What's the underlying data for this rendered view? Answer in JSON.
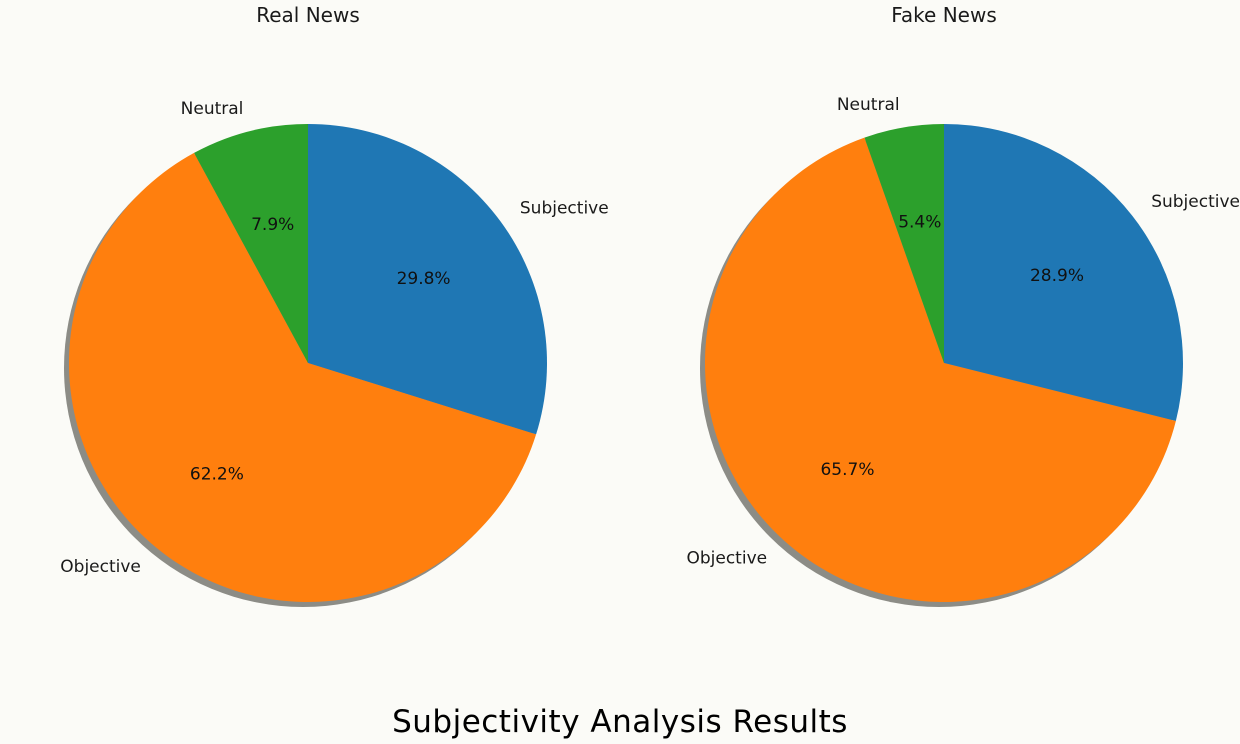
{
  "caption": "Subjectivity Analysis Results",
  "chart_data": [
    {
      "type": "pie",
      "title": "Real News",
      "start_angle_deg": 90,
      "direction": "clockwise",
      "shadow": true,
      "slices": [
        {
          "key": "subjective",
          "label": "Subjective",
          "value": 29.8,
          "pct_label": "29.8%",
          "color": "#1f77b4"
        },
        {
          "key": "objective",
          "label": "Objective",
          "value": 62.2,
          "pct_label": "62.2%",
          "color": "#ff7f0e"
        },
        {
          "key": "neutral",
          "label": "Neutral",
          "value": 7.9,
          "pct_label": "7.9%",
          "color": "#2ca02c"
        }
      ]
    },
    {
      "type": "pie",
      "title": "Fake News",
      "start_angle_deg": 90,
      "direction": "clockwise",
      "shadow": true,
      "slices": [
        {
          "key": "subjective",
          "label": "Subjective",
          "value": 28.9,
          "pct_label": "28.9%",
          "color": "#1f77b4"
        },
        {
          "key": "objective",
          "label": "Objective",
          "value": 65.7,
          "pct_label": "65.7%",
          "color": "#ff7f0e"
        },
        {
          "key": "neutral",
          "label": "Neutral",
          "value": 5.4,
          "pct_label": "5.4%",
          "color": "#2ca02c"
        }
      ]
    }
  ]
}
